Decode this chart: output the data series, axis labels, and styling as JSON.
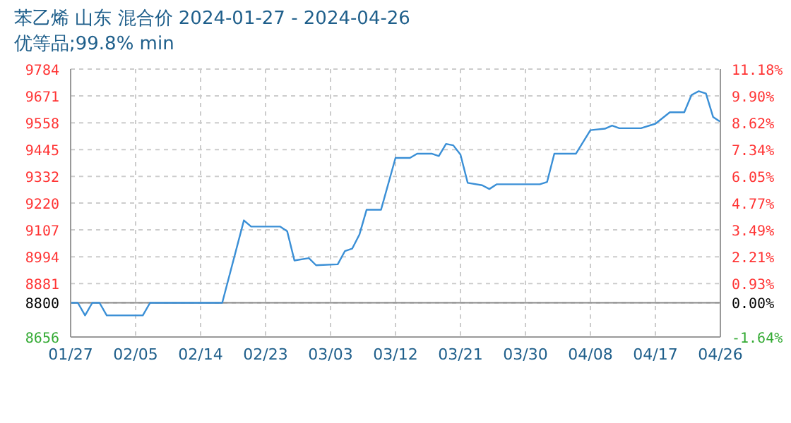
{
  "chart_data": {
    "type": "line",
    "title": "苯乙烯 山东 混合价 2024-01-27 - 2024-04-26",
    "subtitle": "优等品;99.8% min",
    "x": [
      "2024-01-27",
      "2024-01-28",
      "2024-01-29",
      "2024-01-30",
      "2024-01-31",
      "2024-02-01",
      "2024-02-06",
      "2024-02-07",
      "2024-02-17",
      "2024-02-20",
      "2024-02-21",
      "2024-02-25",
      "2024-02-26",
      "2024-02-27",
      "2024-02-29",
      "2024-03-01",
      "2024-03-04",
      "2024-03-05",
      "2024-03-06",
      "2024-03-07",
      "2024-03-08",
      "2024-03-10",
      "2024-03-12",
      "2024-03-14",
      "2024-03-15",
      "2024-03-17",
      "2024-03-18",
      "2024-03-19",
      "2024-03-20",
      "2024-03-21",
      "2024-03-22",
      "2024-03-24",
      "2024-03-25",
      "2024-03-26",
      "2024-04-01",
      "2024-04-02",
      "2024-04-03",
      "2024-04-06",
      "2024-04-08",
      "2024-04-10",
      "2024-04-11",
      "2024-04-12",
      "2024-04-15",
      "2024-04-17",
      "2024-04-19",
      "2024-04-21",
      "2024-04-22",
      "2024-04-23",
      "2024-04-24",
      "2024-04-25",
      "2024-04-26"
    ],
    "series": [
      {
        "color": "#3a8fd6",
        "values": [
          8800,
          8800,
          8747,
          8800,
          8800,
          8747,
          8747,
          8800,
          8800,
          9147,
          9121,
          9121,
          9101,
          8978,
          8988,
          8958,
          8962,
          9018,
          9028,
          9087,
          9192,
          9192,
          9410,
          9410,
          9428,
          9428,
          9418,
          9469,
          9463,
          9424,
          9305,
          9295,
          9279,
          9299,
          9299,
          9309,
          9428,
          9428,
          9527,
          9533,
          9546,
          9535,
          9535,
          9554,
          9602,
          9602,
          9675,
          9691,
          9681,
          9582,
          9562
        ]
      }
    ],
    "xlim": [
      "2024-01-27",
      "2024-04-26"
    ],
    "xticks": [
      {
        "value": "2024-01-27",
        "label": "01/27"
      },
      {
        "value": "2024-02-05",
        "label": "02/05"
      },
      {
        "value": "2024-02-14",
        "label": "02/14"
      },
      {
        "value": "2024-02-23",
        "label": "02/23"
      },
      {
        "value": "2024-03-03",
        "label": "03/03"
      },
      {
        "value": "2024-03-12",
        "label": "03/12"
      },
      {
        "value": "2024-03-21",
        "label": "03/21"
      },
      {
        "value": "2024-03-30",
        "label": "03/30"
      },
      {
        "value": "2024-04-08",
        "label": "04/08"
      },
      {
        "value": "2024-04-17",
        "label": "04/17"
      },
      {
        "value": "2024-04-26",
        "label": "04/26"
      }
    ],
    "ylim": [
      8656,
      9784
    ],
    "yticks": [
      8656,
      8800,
      8881,
      8994,
      9107,
      9220,
      9332,
      9445,
      9558,
      9671,
      9784
    ],
    "y2lim": [
      -1.64,
      11.18
    ],
    "y2ticks": [
      {
        "value": -1.64,
        "label": "-1.64%"
      },
      {
        "value": 0,
        "label": "0.00%"
      },
      {
        "value": 0.93,
        "label": "0.93%"
      },
      {
        "value": 2.21,
        "label": "2.21%"
      },
      {
        "value": 3.49,
        "label": "3.49%"
      },
      {
        "value": 4.77,
        "label": "4.77%"
      },
      {
        "value": 6.05,
        "label": "6.05%"
      },
      {
        "value": 7.34,
        "label": "7.34%"
      },
      {
        "value": 8.62,
        "label": "8.62%"
      },
      {
        "value": 9.9,
        "label": "9.90%"
      },
      {
        "value": 11.18,
        "label": "11.18%"
      }
    ],
    "ref_lines": [
      {
        "axis": "y",
        "value": 8800,
        "color": "#888888"
      }
    ],
    "grid": true,
    "marker": "none",
    "line_style": "solid"
  }
}
